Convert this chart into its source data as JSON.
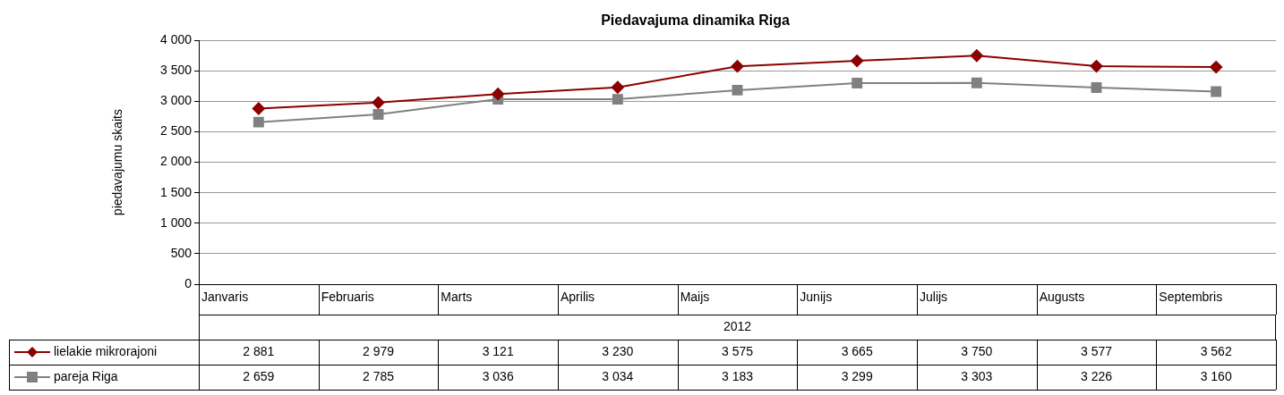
{
  "chart_data": {
    "type": "line",
    "title": "Piedavajuma dinamika Riga",
    "ylabel": "piedavajumu skaits",
    "xlabel": "2012",
    "categories": [
      "Janvaris",
      "Februaris",
      "Marts",
      "Aprilis",
      "Maijs",
      "Junijs",
      "Julijs",
      "Augusts",
      "Septembris"
    ],
    "ylim": [
      0,
      4000
    ],
    "yticks": [
      {
        "value": 0,
        "label": "0"
      },
      {
        "value": 500,
        "label": "500"
      },
      {
        "value": 1000,
        "label": "1 000"
      },
      {
        "value": 1500,
        "label": "1 500"
      },
      {
        "value": 2000,
        "label": "2 000"
      },
      {
        "value": 2500,
        "label": "2 500"
      },
      {
        "value": 3000,
        "label": "3 000"
      },
      {
        "value": 3500,
        "label": "3 500"
      },
      {
        "value": 4000,
        "label": "4 000"
      }
    ],
    "grid": "y",
    "legend": "bottom",
    "series": [
      {
        "name": "lielakie mikrorajoni",
        "color": "#8b0000",
        "marker": "diamond",
        "values": [
          2881,
          2979,
          3121,
          3230,
          3575,
          3665,
          3750,
          3577,
          3562
        ],
        "value_labels": [
          "2 881",
          "2 979",
          "3 121",
          "3 230",
          "3 575",
          "3 665",
          "3 750",
          "3 577",
          "3 562"
        ]
      },
      {
        "name": "pareja Riga",
        "color": "#808080",
        "marker": "square",
        "values": [
          2659,
          2785,
          3036,
          3034,
          3183,
          3299,
          3303,
          3226,
          3160
        ],
        "value_labels": [
          "2 659",
          "2 785",
          "3 036",
          "3 034",
          "3 183",
          "3 299",
          "3 303",
          "3 226",
          "3 160"
        ]
      }
    ]
  }
}
